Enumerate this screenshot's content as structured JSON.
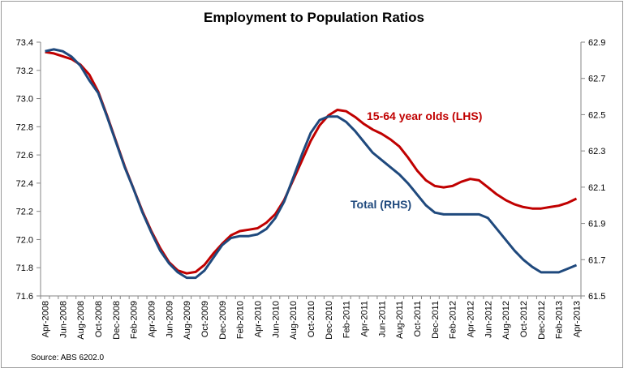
{
  "chart_data": {
    "type": "line",
    "title": "Employment to Population Ratios",
    "source": "Source: ABS 6202.0",
    "categories": [
      "Apr-2008",
      null,
      "Jun-2008",
      null,
      "Aug-2008",
      null,
      "Oct-2008",
      null,
      "Dec-2008",
      null,
      "Feb-2009",
      null,
      "Apr-2009",
      null,
      "Jun-2009",
      null,
      "Aug-2009",
      null,
      "Oct-2009",
      null,
      "Dec-2009",
      null,
      "Feb-2010",
      null,
      "Apr-2010",
      null,
      "Jun-2010",
      null,
      "Aug-2010",
      null,
      "Oct-2010",
      null,
      "Dec-2010",
      null,
      "Feb-2011",
      null,
      "Apr-2011",
      null,
      "Jun-2011",
      null,
      "Aug-2011",
      null,
      "Oct-2011",
      null,
      "Dec-2011",
      null,
      "Feb-2012",
      null,
      "Apr-2012",
      null,
      "Jun-2012",
      null,
      "Aug-2012",
      null,
      "Oct-2012",
      null,
      "Dec-2012",
      null,
      "Feb-2013",
      null,
      "Apr-2013"
    ],
    "series": [
      {
        "name": "15-64 year olds (LHS)",
        "color": "#c00000",
        "axis": "y",
        "values": [
          73.33,
          73.32,
          73.3,
          73.28,
          73.24,
          73.17,
          73.05,
          72.88,
          72.7,
          72.52,
          72.36,
          72.2,
          72.06,
          71.94,
          71.84,
          71.78,
          71.76,
          71.77,
          71.82,
          71.9,
          71.97,
          72.03,
          72.06,
          72.07,
          72.08,
          72.12,
          72.18,
          72.28,
          72.42,
          72.56,
          72.7,
          72.81,
          72.88,
          72.92,
          72.91,
          72.87,
          72.82,
          72.78,
          72.75,
          72.71,
          72.66,
          72.58,
          72.49,
          72.42,
          72.38,
          72.37,
          72.38,
          72.41,
          72.43,
          72.42,
          72.37,
          72.32,
          72.28,
          72.25,
          72.23,
          72.22,
          72.22,
          72.23,
          72.24,
          72.26,
          72.29
        ]
      },
      {
        "name": "Total (RHS)",
        "color": "#1f497d",
        "axis": "y2",
        "values": [
          62.85,
          62.86,
          62.85,
          62.82,
          62.77,
          62.69,
          62.62,
          62.49,
          62.35,
          62.21,
          62.09,
          61.96,
          61.85,
          61.75,
          61.68,
          61.63,
          61.6,
          61.6,
          61.64,
          61.71,
          61.78,
          61.82,
          61.83,
          61.83,
          61.84,
          61.87,
          61.93,
          62.02,
          62.15,
          62.28,
          62.4,
          62.47,
          62.49,
          62.49,
          62.46,
          62.41,
          62.35,
          62.29,
          62.25,
          62.21,
          62.17,
          62.12,
          62.06,
          62.0,
          61.96,
          61.95,
          61.95,
          61.95,
          61.95,
          61.95,
          61.93,
          61.87,
          61.81,
          61.75,
          61.7,
          61.66,
          61.63,
          61.63,
          61.63,
          61.65,
          61.67
        ]
      }
    ],
    "ylim": [
      71.6,
      73.4
    ],
    "yticks": [
      71.6,
      71.8,
      {
        "value": 72,
        "label": "72.0"
      },
      72.2,
      72.4,
      72.6,
      72.8,
      {
        "value": 73,
        "label": "73.0"
      },
      73.2,
      73.4
    ],
    "y2lim": [
      61.5,
      62.9
    ],
    "y2ticks": [
      61.5,
      61.7,
      61.9,
      62.1,
      62.3,
      62.5,
      62.7,
      62.9
    ],
    "grid": false
  }
}
